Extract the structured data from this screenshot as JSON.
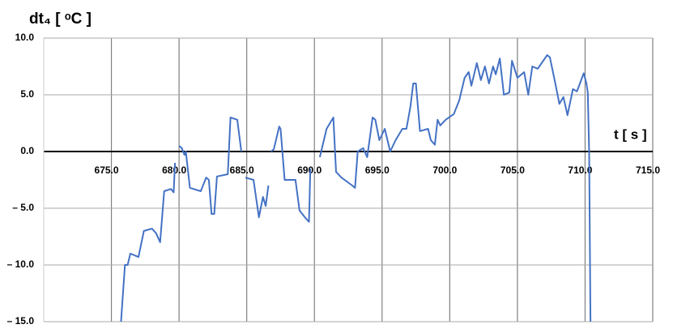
{
  "chart_data": {
    "type": "line",
    "ylabel": "dt₄ [ ᵒC ]",
    "xlabel": "t [ s ]",
    "color": "#4472c4",
    "grid": true,
    "xlim": [
      670,
      715
    ],
    "ylim": [
      -15,
      10
    ],
    "xticks": [
      {
        "value": 675,
        "label": "675.0"
      },
      {
        "value": 680,
        "label": "680.0"
      },
      {
        "value": 685,
        "label": "685.0"
      },
      {
        "value": 690,
        "label": "690.0"
      },
      {
        "value": 695,
        "label": "695.0"
      },
      {
        "value": 700,
        "label": "700.0"
      },
      {
        "value": 705,
        "label": "705.0"
      },
      {
        "value": 710,
        "label": "710.0"
      },
      {
        "value": 715,
        "label": "715.0"
      }
    ],
    "yticks": [
      {
        "value": 10,
        "label": "10.0"
      },
      {
        "value": 5,
        "label": "5.0"
      },
      {
        "value": 0,
        "label": "0.0"
      },
      {
        "value": -5,
        "label": "– 5.0"
      },
      {
        "value": -10,
        "label": "– 10.0"
      },
      {
        "value": -15,
        "label": "– 15.0"
      }
    ],
    "x": [
      675.7,
      676.0,
      676.2,
      676.4,
      677.0,
      677.4,
      678.0,
      678.3,
      678.6,
      678.9,
      679.4,
      679.6,
      679.7,
      679.8,
      680.0,
      680.2,
      680.4,
      680.5,
      680.8,
      681.6,
      682.0,
      682.2,
      682.4,
      682.6,
      682.8,
      683.6,
      683.8,
      684.3,
      684.6,
      684.7,
      684.9,
      685.5,
      685.9,
      686.2,
      686.4,
      686.6,
      686.7,
      686.8,
      687.0,
      687.4,
      687.5,
      687.8,
      688.6,
      688.9,
      689.3,
      689.6,
      689.7,
      689.8,
      690.4,
      690.9,
      691.4,
      691.6,
      692.0,
      692.8,
      693.0,
      693.2,
      693.6,
      693.9,
      694.3,
      694.5,
      694.8,
      695.2,
      695.6,
      696.0,
      696.5,
      696.8,
      697.1,
      697.3,
      697.5,
      697.8,
      698.4,
      698.6,
      698.9,
      699.1,
      699.3,
      699.7,
      700.3,
      700.7,
      701.1,
      701.4,
      701.6,
      702.0,
      702.3,
      702.6,
      702.9,
      703.2,
      703.4,
      703.7,
      704.0,
      704.4,
      704.6,
      705.0,
      705.3,
      705.5,
      705.8,
      706.1,
      706.5,
      707.2,
      707.4,
      707.8,
      708.1,
      708.4,
      708.7,
      709.1,
      709.4,
      709.9,
      710.1,
      710.2,
      710.3,
      710.4
    ],
    "values": [
      -15.2,
      -10,
      -10,
      -9,
      -9.3,
      -7,
      -6.8,
      -7.2,
      -8,
      -3.5,
      -3.3,
      -3.6,
      -1,
      null,
      0.5,
      0.3,
      -0.3,
      0,
      -3.2,
      -3.5,
      -2.3,
      -2.5,
      -5.5,
      -5.5,
      -2.2,
      -2,
      3,
      2.8,
      0,
      null,
      -2.3,
      -2.5,
      -5.8,
      -4,
      -4.8,
      -3,
      null,
      0,
      0.2,
      2.2,
      2,
      -2.5,
      -2.5,
      -5.2,
      -5.8,
      -6.2,
      -1.5,
      null,
      -0.5,
      2,
      3,
      -1.8,
      -2.3,
      -3,
      -3.2,
      0,
      0.3,
      -0.5,
      3,
      2.8,
      1,
      2,
      0,
      1,
      2,
      2,
      4,
      6,
      6,
      1.8,
      2,
      1,
      0.6,
      2.8,
      2.3,
      2.8,
      3.3,
      4.5,
      6.5,
      7,
      5.8,
      7.8,
      6.3,
      7.5,
      6,
      7.5,
      6.8,
      8.2,
      5,
      5.2,
      8,
      6.5,
      6.8,
      7,
      5,
      7.5,
      7.3,
      8.5,
      8.3,
      6,
      4.2,
      4.8,
      3.2,
      5.5,
      5.3,
      6.9,
      6,
      5.2,
      0,
      -15.2
    ]
  }
}
